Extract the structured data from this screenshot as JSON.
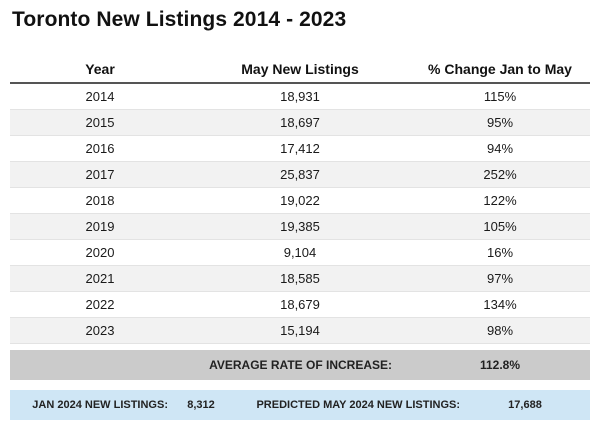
{
  "title": "Toronto New Listings 2014 - 2023",
  "chart_data": {
    "type": "table",
    "columns": [
      "Year",
      "May New Listings",
      "% Change Jan to May"
    ],
    "rows": [
      {
        "year": "2014",
        "listings": "18,931",
        "change": "115%"
      },
      {
        "year": "2015",
        "listings": "18,697",
        "change": "95%"
      },
      {
        "year": "2016",
        "listings": "17,412",
        "change": "94%"
      },
      {
        "year": "2017",
        "listings": "25,837",
        "change": "252%"
      },
      {
        "year": "2018",
        "listings": "19,022",
        "change": "122%"
      },
      {
        "year": "2019",
        "listings": "19,385",
        "change": "105%"
      },
      {
        "year": "2020",
        "listings": "9,104",
        "change": "16%"
      },
      {
        "year": "2021",
        "listings": "18,585",
        "change": "97%"
      },
      {
        "year": "2022",
        "listings": "18,679",
        "change": "134%"
      },
      {
        "year": "2023",
        "listings": "15,194",
        "change": "98%"
      }
    ],
    "average": {
      "label": "AVERAGE RATE OF INCREASE:",
      "value": "112.8%"
    },
    "prediction": {
      "jan_label": "JAN 2024 NEW LISTINGS:",
      "jan_value": "8,312",
      "may_label": "PREDICTED MAY 2024 NEW LISTINGS:",
      "may_value": "17,688"
    }
  },
  "colors": {
    "alt_row": "#f2f2f2",
    "average_band": "#cbcbcb",
    "prediction_band": "#cfe6f5",
    "header_rule": "#555555"
  }
}
